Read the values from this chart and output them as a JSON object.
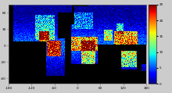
{
  "title": "",
  "cmap": "jet",
  "vmin": 0,
  "vmax": 25,
  "colorbar_ticks": [
    0,
    5,
    10,
    15,
    20,
    25
  ],
  "xlabel_ticks": [
    -180,
    -120,
    -60,
    0,
    60,
    120,
    180
  ],
  "ylabel_ticks": [
    -60,
    -30,
    0,
    30,
    60
  ],
  "background_color": "black",
  "fig_bg": "#cccccc",
  "figsize": [
    2.2,
    1.19
  ],
  "dpi": 100,
  "xlim": [
    -180,
    180
  ],
  "ylim": [
    -70,
    75
  ],
  "land_color": "white"
}
